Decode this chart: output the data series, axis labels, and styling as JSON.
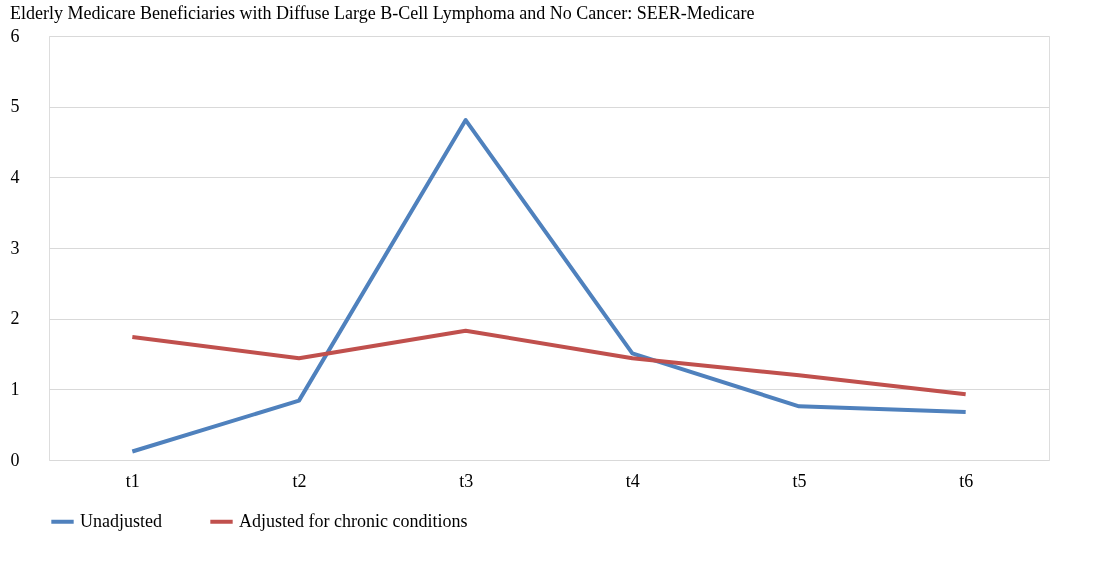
{
  "chart_data": {
    "type": "line",
    "title": "Elderly Medicare Beneficiaries with Diffuse Large B-Cell Lymphoma and No Cancer: SEER-Medicare",
    "categories": [
      "t1",
      "t2",
      "t3",
      "t4",
      "t5",
      "t6"
    ],
    "series": [
      {
        "name": "Unadjusted",
        "color": "#4f81bd",
        "values": [
          0.12,
          0.84,
          4.81,
          1.51,
          0.76,
          0.68
        ]
      },
      {
        "name": "Adjusted for chronic conditions",
        "color": "#c0504d",
        "values": [
          1.74,
          1.44,
          1.83,
          1.44,
          1.2,
          0.93
        ]
      }
    ],
    "ylim": [
      0,
      6
    ],
    "yticks": [
      0,
      1,
      2,
      3,
      4,
      5,
      6
    ],
    "grid": "y",
    "legend": "bottom",
    "marker": "none",
    "line_style": "solid"
  }
}
